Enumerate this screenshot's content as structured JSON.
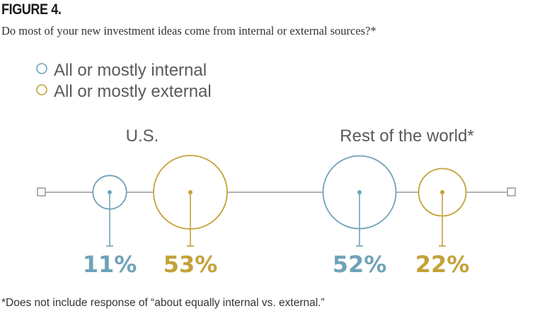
{
  "figure_label": "FIGURE 4.",
  "question": "Do most of your new investment ideas come from internal or external sources?*",
  "footnote": "*Does not include response of “about equally internal vs. external.”",
  "colors": {
    "internal": "#6fa3b8",
    "external": "#c4a23a",
    "axis": "#999999"
  },
  "chart_data": {
    "type": "bubble",
    "categories": [
      "U.S.",
      "Rest of the world*"
    ],
    "series": [
      {
        "name": "All or mostly internal",
        "values": [
          11,
          52
        ]
      },
      {
        "name": "All or mostly external",
        "values": [
          53,
          22
        ]
      }
    ],
    "value_labels": [
      [
        "11%",
        "53%"
      ],
      [
        "52%",
        "22%"
      ]
    ],
    "unit": "%",
    "legend": "top-left",
    "grid": false
  }
}
